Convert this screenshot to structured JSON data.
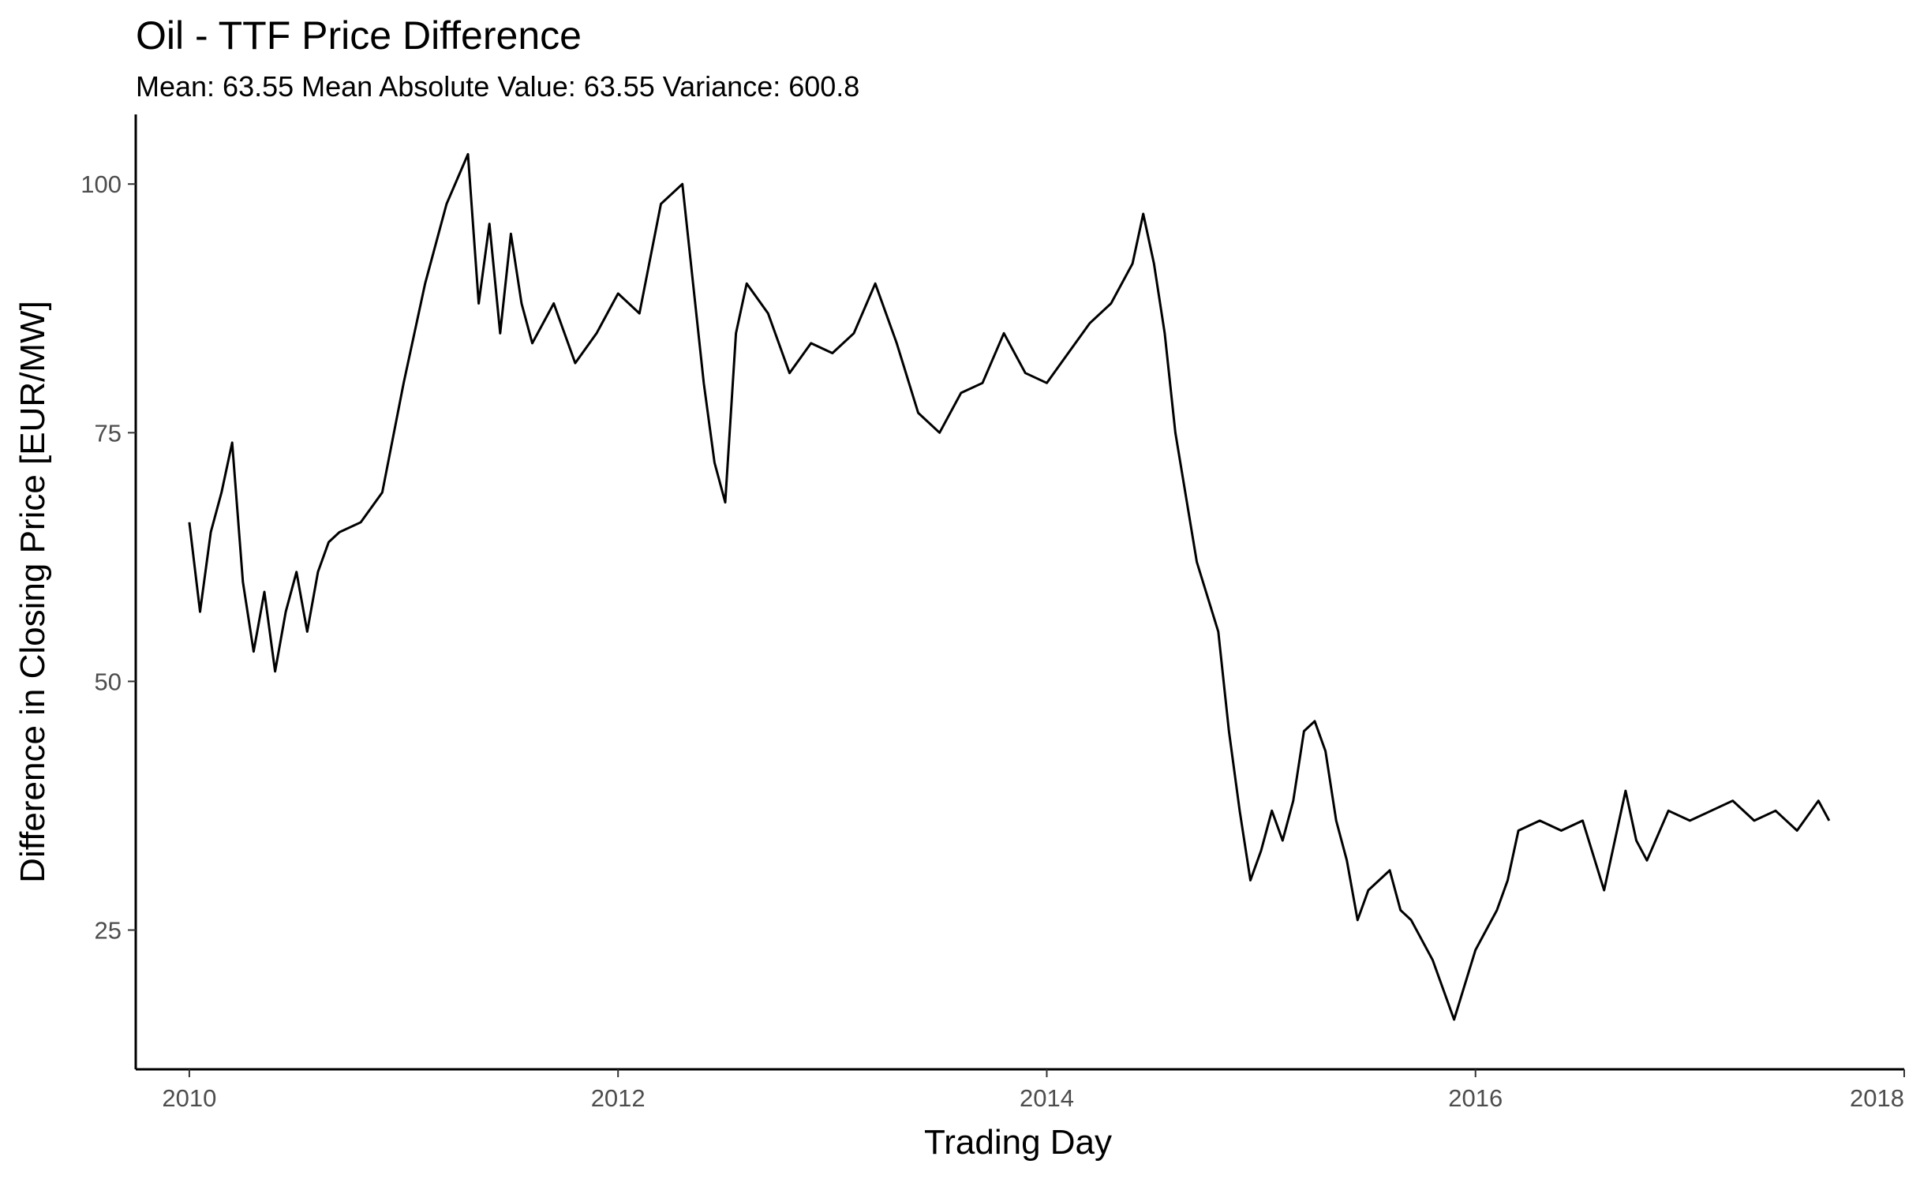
{
  "chart_data": {
    "type": "line",
    "title": "Oil - TTF  Price Difference",
    "subtitle": "Mean: 63.55 Mean Absolute Value: 63.55 Variance: 600.8",
    "xlabel": "Trading Day",
    "ylabel": "Difference in Closing Price [EUR/MW]",
    "xlim": [
      2009.75,
      2018.0
    ],
    "ylim": [
      11,
      107
    ],
    "x_ticks": [
      2010,
      2012,
      2014,
      2016,
      2018
    ],
    "x_tick_labels": [
      "2010",
      "2012",
      "2014",
      "2016",
      "2018"
    ],
    "y_ticks": [
      25,
      50,
      75,
      100
    ],
    "y_tick_labels": [
      "25",
      "50",
      "75",
      "100"
    ],
    "grid": false,
    "legend": "none",
    "series": [
      {
        "color": "#000000",
        "x": [
          2010.0,
          2010.05,
          2010.1,
          2010.15,
          2010.2,
          2010.25,
          2010.3,
          2010.35,
          2010.4,
          2010.45,
          2010.5,
          2010.55,
          2010.6,
          2010.65,
          2010.7,
          2010.8,
          2010.9,
          2011.0,
          2011.1,
          2011.2,
          2011.3,
          2011.35,
          2011.4,
          2011.45,
          2011.5,
          2011.55,
          2011.6,
          2011.7,
          2011.8,
          2011.9,
          2012.0,
          2012.1,
          2012.2,
          2012.3,
          2012.4,
          2012.45,
          2012.5,
          2012.55,
          2012.6,
          2012.7,
          2012.8,
          2012.9,
          2013.0,
          2013.1,
          2013.2,
          2013.3,
          2013.4,
          2013.5,
          2013.6,
          2013.7,
          2013.8,
          2013.9,
          2014.0,
          2014.1,
          2014.2,
          2014.3,
          2014.4,
          2014.45,
          2014.5,
          2014.55,
          2014.6,
          2014.7,
          2014.8,
          2014.85,
          2014.9,
          2014.95,
          2015.0,
          2015.05,
          2015.1,
          2015.15,
          2015.2,
          2015.25,
          2015.3,
          2015.35,
          2015.4,
          2015.45,
          2015.5,
          2015.55,
          2015.6,
          2015.65,
          2015.7,
          2015.8,
          2015.9,
          2016.0,
          2016.05,
          2016.1,
          2016.15,
          2016.2,
          2016.3,
          2016.4,
          2016.5,
          2016.6,
          2016.7,
          2016.75,
          2016.8,
          2016.9,
          2017.0,
          2017.1,
          2017.2,
          2017.3,
          2017.4,
          2017.5,
          2017.6,
          2017.65
        ],
        "y": [
          66,
          57,
          65,
          69,
          74,
          60,
          53,
          59,
          51,
          57,
          61,
          55,
          61,
          64,
          65,
          66,
          69,
          80,
          90,
          98,
          103,
          88,
          96,
          85,
          95,
          88,
          84,
          88,
          82,
          85,
          89,
          87,
          98,
          100,
          80,
          72,
          68,
          85,
          90,
          87,
          81,
          84,
          83,
          85,
          90,
          84,
          77,
          75,
          79,
          80,
          85,
          81,
          80,
          83,
          86,
          88,
          92,
          97,
          92,
          85,
          75,
          62,
          55,
          45,
          37,
          30,
          33,
          37,
          34,
          38,
          45,
          46,
          43,
          36,
          32,
          26,
          29,
          30,
          31,
          27,
          26,
          22,
          16,
          23,
          25,
          27,
          30,
          35,
          36,
          35,
          36,
          29,
          39,
          34,
          32,
          37,
          36,
          37,
          38,
          36,
          37,
          35,
          38,
          36
        ]
      }
    ]
  }
}
